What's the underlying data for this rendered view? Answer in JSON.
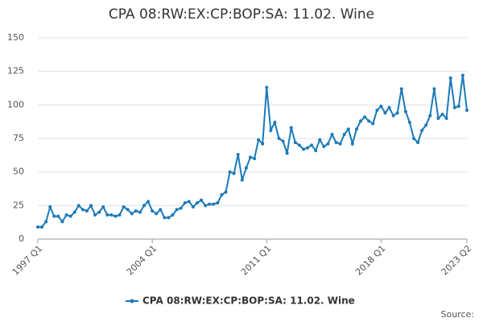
{
  "chart_data": {
    "type": "line",
    "title": "CPA 08:RW:EX:CP:BOP:SA: 11.02. Wine",
    "categories": [
      "1997 Q1",
      null,
      null,
      null,
      null,
      null,
      null,
      null,
      null,
      null,
      null,
      null,
      null,
      null,
      null,
      null,
      null,
      null,
      null,
      null,
      null,
      null,
      null,
      null,
      null,
      null,
      null,
      null,
      "2004 Q1",
      null,
      null,
      null,
      null,
      null,
      null,
      null,
      null,
      null,
      null,
      null,
      null,
      null,
      null,
      null,
      null,
      null,
      null,
      null,
      null,
      null,
      null,
      null,
      null,
      null,
      null,
      null,
      "2011 Q1",
      null,
      null,
      null,
      null,
      null,
      null,
      null,
      null,
      null,
      null,
      null,
      null,
      null,
      null,
      null,
      null,
      null,
      null,
      null,
      null,
      null,
      null,
      null,
      null,
      null,
      null,
      null,
      "2018 Q1",
      null,
      null,
      null,
      null,
      null,
      null,
      null,
      null,
      null,
      null,
      null,
      null,
      null,
      null,
      null,
      null,
      null,
      null,
      null,
      null,
      "2023 Q2"
    ],
    "series": [
      {
        "name": "CPA 08:RW:EX:CP:BOP:SA: 11.02. Wine",
        "color": "#1a7ab8",
        "values": [
          9,
          9,
          13,
          24,
          17,
          17,
          13,
          18,
          17,
          20,
          25,
          22,
          21,
          25,
          18,
          20,
          24,
          18,
          18,
          17,
          18,
          24,
          22,
          19,
          21,
          20,
          25,
          28,
          21,
          19,
          22,
          16,
          16,
          18,
          22,
          23,
          27,
          28,
          24,
          27,
          29,
          25,
          26,
          26,
          27,
          33,
          35,
          50,
          49,
          63,
          44,
          53,
          61,
          60,
          74,
          71,
          113,
          81,
          87,
          75,
          73,
          64,
          83,
          72,
          70,
          67,
          68,
          70,
          66,
          74,
          69,
          71,
          78,
          72,
          71,
          78,
          82,
          71,
          82,
          88,
          91,
          88,
          86,
          96,
          99,
          94,
          98,
          92,
          94,
          112,
          95,
          87,
          75,
          72,
          81,
          85,
          92,
          112,
          90,
          93,
          90,
          120,
          98,
          99,
          122,
          96
        ]
      }
    ],
    "ylim": [
      0,
      150
    ],
    "yticks": [
      0,
      25,
      50,
      75,
      100,
      125,
      150
    ],
    "grid": true,
    "legend": "bottom",
    "source": "Source:"
  }
}
